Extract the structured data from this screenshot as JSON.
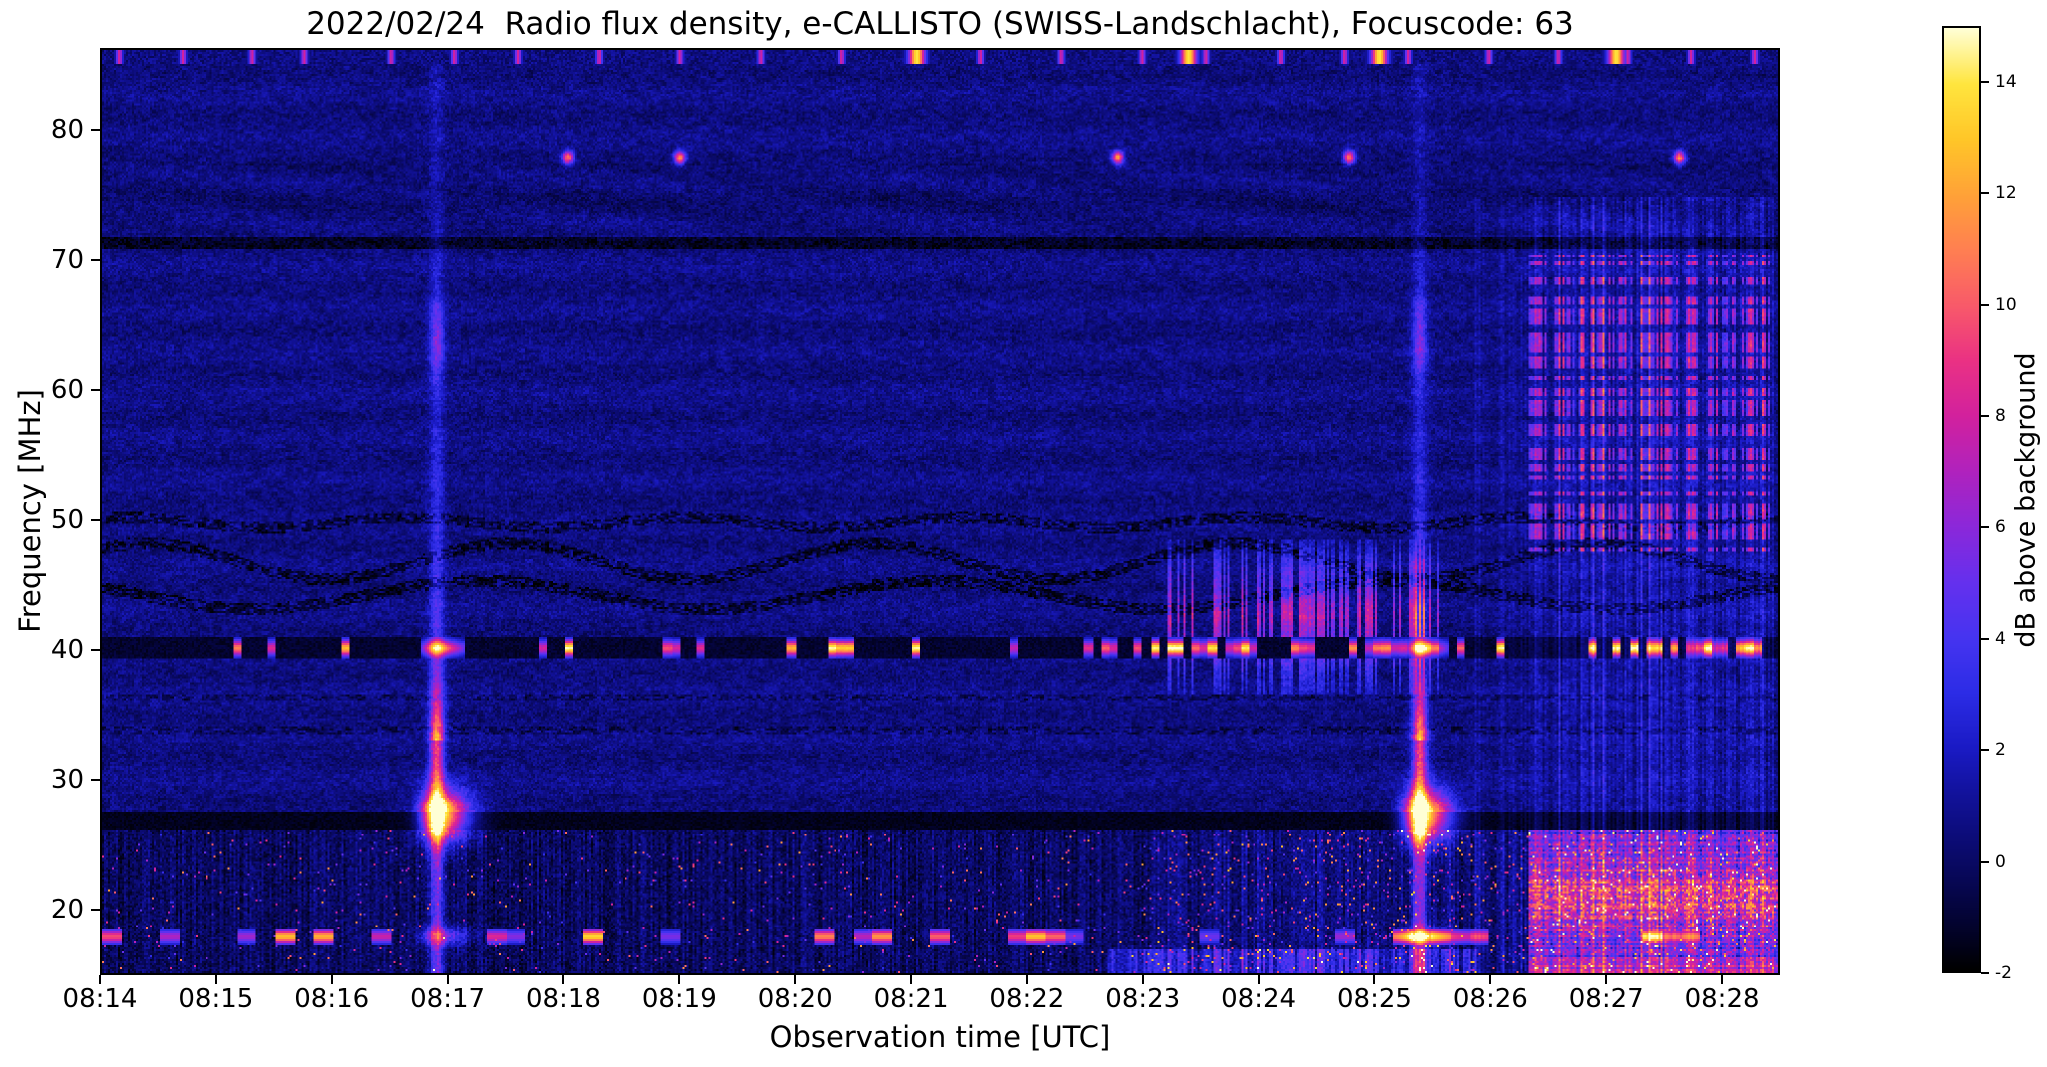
{
  "chart_data": {
    "type": "heatmap",
    "title": "2022/02/24  Radio flux density, e-CALLISTO (SWISS-Landschlacht), Focuscode: 63",
    "xlabel": "Observation time [UTC]",
    "ylabel": "Frequency [MHz]",
    "x_tick_labels": [
      "08:14",
      "08:15",
      "08:16",
      "08:17",
      "08:18",
      "08:19",
      "08:20",
      "08:21",
      "08:22",
      "08:23",
      "08:24",
      "08:25",
      "08:26",
      "08:27",
      "08:28"
    ],
    "x_tick_minutes": [
      0,
      1,
      2,
      3,
      4,
      5,
      6,
      7,
      8,
      9,
      10,
      11,
      12,
      13,
      14
    ],
    "x_range_minutes": [
      0,
      14.5
    ],
    "y_ticks": [
      20,
      30,
      40,
      50,
      60,
      70,
      80
    ],
    "y_range_mhz": [
      15,
      86.3
    ],
    "grid": false,
    "colorbar": {
      "label": "dB above background",
      "ticks": [
        -2,
        0,
        2,
        4,
        6,
        8,
        10,
        12,
        14
      ],
      "range": [
        -2,
        15
      ],
      "colormap_stops": [
        [
          -2.0,
          "#000000"
        ],
        [
          -1.2,
          "#03032e"
        ],
        [
          -0.4,
          "#070754"
        ],
        [
          0.4,
          "#0c0c78"
        ],
        [
          1.2,
          "#12129c"
        ],
        [
          2.0,
          "#1a1ac4"
        ],
        [
          3.0,
          "#2c2ce6"
        ],
        [
          4.0,
          "#4634f0"
        ],
        [
          5.0,
          "#6530ee"
        ],
        [
          6.0,
          "#8b28da"
        ],
        [
          7.0,
          "#b022be"
        ],
        [
          8.0,
          "#d2219e"
        ],
        [
          9.0,
          "#ea3184"
        ],
        [
          10.0,
          "#f85a6a"
        ],
        [
          11.0,
          "#ff7f52"
        ],
        [
          12.0,
          "#ffa238"
        ],
        [
          13.0,
          "#ffc628"
        ],
        [
          14.0,
          "#ffe53e"
        ],
        [
          15.0,
          "#ffffd5"
        ]
      ]
    },
    "features": {
      "background_level_db": 0.6,
      "bursts": [
        {
          "t_min": 2.9,
          "utc": "08:16:54",
          "core_mhz": 27.2,
          "peak_db": 15,
          "top_mhz": 70
        },
        {
          "t_min": 11.4,
          "utc": "08:25:24",
          "core_mhz": 27.2,
          "peak_db": 15,
          "top_mhz": 70
        }
      ],
      "interference_lines_mhz": {
        "bright_blob_line": 40.1,
        "dark_bands": [
          [
            26.1,
            27.45
          ],
          [
            39.3,
            40.9
          ],
          [
            70.9,
            71.9
          ]
        ],
        "noisy_floor_below_mhz": 26.0,
        "dotted_bright_line_mhz": 17.8
      },
      "spots_78mhz_t_min": [
        4.03,
        5.0,
        8.79,
        10.79,
        13.65
      ],
      "top_edge_dashes_t_min": [
        0.15,
        0.7,
        1.3,
        1.75,
        2.5,
        3.05,
        3.6,
        4.3,
        5.0,
        5.7,
        6.4,
        7.6,
        8.3,
        9.0,
        9.55,
        10.2,
        10.75,
        11.3,
        12.0,
        12.6,
        13.2,
        13.75,
        14.3
      ],
      "top_edge_bright_t_min": [
        7.05,
        9.4,
        11.05,
        13.1
      ],
      "rfi_stripes_window_min": [
        9.2,
        11.6
      ],
      "rfi_stripes_band_mhz": [
        36.5,
        48.5
      ],
      "broadband_rfi_from_min": 12.35,
      "bright_low_freq_from_min": 12.35,
      "active_40mhz_windows_min": [
        [
          9.0,
          11.7
        ],
        [
          12.9,
          14.5
        ]
      ]
    }
  }
}
